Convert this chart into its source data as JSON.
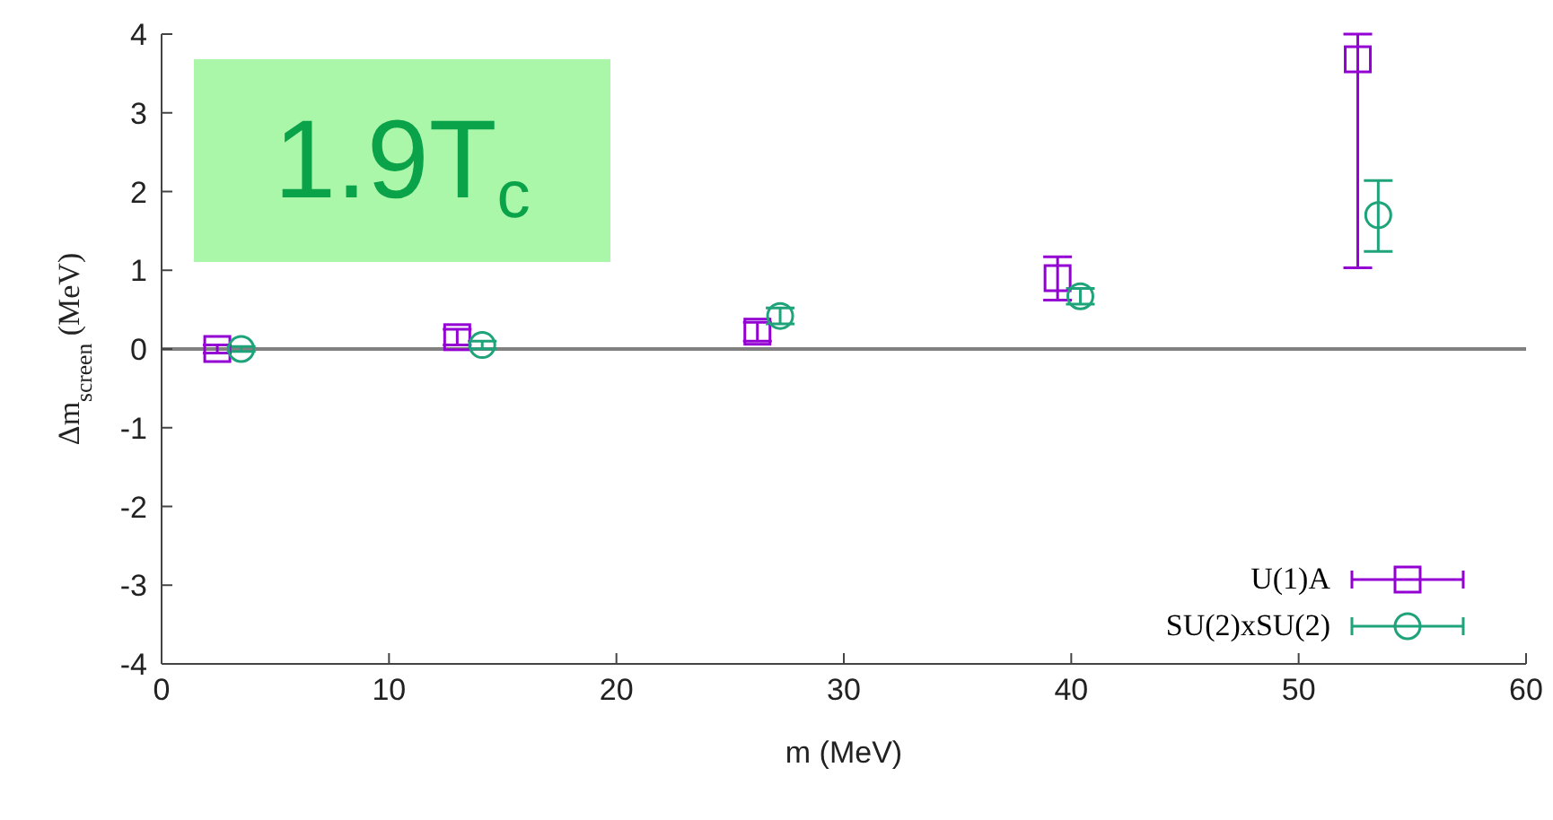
{
  "chart_data": {
    "type": "scatter",
    "xlabel": "m (MeV)",
    "ylabel": "Δm$_{screen}$ (MeV)",
    "annotations": [
      "1.9T$_{c}$"
    ],
    "xlim": [
      0,
      60
    ],
    "xticks": [
      0,
      10,
      20,
      30,
      40,
      50,
      60
    ],
    "ylim": [
      -4,
      4
    ],
    "yticks": [
      -4,
      -3,
      -2,
      -1,
      0,
      1,
      2,
      3,
      4
    ],
    "legend": "bottom right",
    "ref_lines": [
      {
        "axis": "y",
        "value": 0,
        "color": "#808080"
      }
    ],
    "series": [
      {
        "name": "U(1)A",
        "color": "#9400d3",
        "marker": "square",
        "x": [
          2.45,
          13.0,
          26.2,
          39.4,
          52.6
        ],
        "values": [
          0,
          0.15,
          0.22,
          0.9,
          3.68
        ],
        "errors": [
          0.05,
          0.1,
          0.12,
          [
            0.62,
            1.17
          ],
          [
            1.03,
            4
          ]
        ]
      },
      {
        "name": "SU(2)xSU(2)",
        "color": "#1fa37a",
        "marker": "circle",
        "x": [
          3.5,
          14.1,
          27.2,
          40.4,
          53.5
        ],
        "values": [
          0,
          0.05,
          0.42,
          0.67,
          1.7
        ],
        "errors": [
          0.03,
          0.05,
          0.1,
          0.1,
          [
            1.24,
            2.14
          ]
        ]
      }
    ]
  }
}
